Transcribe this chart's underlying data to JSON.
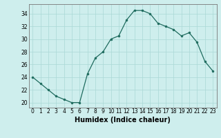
{
  "x": [
    0,
    1,
    2,
    3,
    4,
    5,
    6,
    7,
    8,
    9,
    10,
    11,
    12,
    13,
    14,
    15,
    16,
    17,
    18,
    19,
    20,
    21,
    22,
    23
  ],
  "y": [
    24,
    23,
    22,
    21,
    20.5,
    20,
    20,
    24.5,
    27,
    28,
    30,
    30.5,
    33,
    34.5,
    34.5,
    34,
    32.5,
    32,
    31.5,
    30.5,
    31,
    29.5,
    26.5,
    25
  ],
  "line_color": "#1e6b5e",
  "marker_color": "#1e6b5e",
  "bg_color": "#ceeeed",
  "grid_color": "#aad8d5",
  "xlabel": "Humidex (Indice chaleur)",
  "xlim": [
    -0.5,
    23.5
  ],
  "ylim": [
    19.2,
    35.5
  ],
  "yticks": [
    20,
    22,
    24,
    26,
    28,
    30,
    32,
    34
  ],
  "xticks": [
    0,
    1,
    2,
    3,
    4,
    5,
    6,
    7,
    8,
    9,
    10,
    11,
    12,
    13,
    14,
    15,
    16,
    17,
    18,
    19,
    20,
    21,
    22,
    23
  ],
  "tick_fontsize": 5.5,
  "xlabel_fontsize": 7
}
